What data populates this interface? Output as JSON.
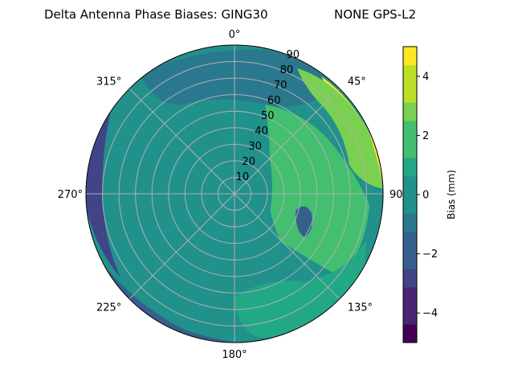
{
  "chart_data": {
    "type": "heatmap",
    "projection": "polar",
    "title_left": "Delta Antenna Phase Biases: GING30",
    "title_right": "NONE GPS-L2",
    "angular_ticks": [
      {
        "deg": 0,
        "label": "0°"
      },
      {
        "deg": 45,
        "label": "45°"
      },
      {
        "deg": 90,
        "label": "90°"
      },
      {
        "deg": 135,
        "label": "135°"
      },
      {
        "deg": 180,
        "label": "180°"
      },
      {
        "deg": 225,
        "label": "225°"
      },
      {
        "deg": 270,
        "label": "270°"
      },
      {
        "deg": 315,
        "label": "315°"
      }
    ],
    "radial_ticks": [
      10,
      20,
      30,
      40,
      50,
      60,
      70,
      80,
      90
    ],
    "radial_range": [
      0,
      90
    ],
    "grid": true,
    "colorbar": {
      "label": "Bias (mm)",
      "ticks": [
        -4,
        -2,
        0,
        2,
        4
      ],
      "range": [
        -5,
        5
      ],
      "levels": [
        -5,
        -4.375,
        -3.75,
        -3.125,
        -2.5,
        -1.875,
        -1.25,
        -0.625,
        0,
        0.625,
        1.25,
        1.875,
        2.5,
        3.125,
        3.75,
        4.375,
        5
      ],
      "colors": [
        "#440154",
        "#482475",
        "#414487",
        "#355f8d",
        "#2a788e",
        "#21918c",
        "#22a884",
        "#44bf70",
        "#7ad151",
        "#bddf26",
        "#fde725"
      ],
      "colormap": "viridis"
    },
    "regions": [
      {
        "name": "background",
        "bias": -0.3
      },
      {
        "name": "north-band",
        "bias": -1.0
      },
      {
        "name": "west-edge",
        "bias": -2.4
      },
      {
        "name": "northeast-edge",
        "bias": 4.5
      },
      {
        "name": "northeast-ring",
        "bias": 2.8
      },
      {
        "name": "east-sector",
        "bias": 1.6
      },
      {
        "name": "center-ring",
        "bias": 0.4
      },
      {
        "name": "southwest-edge",
        "bias": -2.0
      },
      {
        "name": "south-lobe",
        "bias": 1.0
      },
      {
        "name": "east-dip",
        "bias": -1.6
      }
    ]
  }
}
